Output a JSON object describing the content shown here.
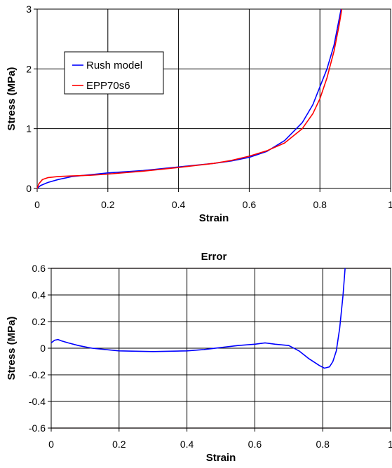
{
  "chart_data": [
    {
      "type": "line",
      "title": "",
      "xlabel": "Strain",
      "ylabel": "Stress (MPa)",
      "xlim": [
        0,
        1
      ],
      "ylim": [
        0,
        3
      ],
      "x_ticks": [
        "0",
        "0.2",
        "0.4",
        "0.6",
        "0.8",
        "1"
      ],
      "y_ticks": [
        "0",
        "1",
        "2",
        "3"
      ],
      "grid": true,
      "legend_position": "upper-left",
      "series": [
        {
          "name": "Rush model",
          "color": "#0000ff",
          "points": [
            [
              0,
              0
            ],
            [
              0.01,
              0.05
            ],
            [
              0.03,
              0.1
            ],
            [
              0.06,
              0.15
            ],
            [
              0.1,
              0.2
            ],
            [
              0.15,
              0.23
            ],
            [
              0.2,
              0.26
            ],
            [
              0.3,
              0.3
            ],
            [
              0.4,
              0.36
            ],
            [
              0.5,
              0.42
            ],
            [
              0.55,
              0.46
            ],
            [
              0.6,
              0.52
            ],
            [
              0.65,
              0.62
            ],
            [
              0.7,
              0.8
            ],
            [
              0.75,
              1.1
            ],
            [
              0.78,
              1.4
            ],
            [
              0.8,
              1.7
            ],
            [
              0.82,
              2.0
            ],
            [
              0.84,
              2.4
            ],
            [
              0.86,
              3.0
            ]
          ]
        },
        {
          "name": "EPP70s6",
          "color": "#ff0000",
          "points": [
            [
              0,
              0
            ],
            [
              0.005,
              0.08
            ],
            [
              0.015,
              0.15
            ],
            [
              0.03,
              0.18
            ],
            [
              0.06,
              0.2
            ],
            [
              0.1,
              0.21
            ],
            [
              0.15,
              0.22
            ],
            [
              0.2,
              0.24
            ],
            [
              0.3,
              0.29
            ],
            [
              0.4,
              0.35
            ],
            [
              0.5,
              0.42
            ],
            [
              0.55,
              0.47
            ],
            [
              0.6,
              0.54
            ],
            [
              0.65,
              0.63
            ],
            [
              0.7,
              0.76
            ],
            [
              0.75,
              1.0
            ],
            [
              0.78,
              1.25
            ],
            [
              0.8,
              1.5
            ],
            [
              0.82,
              1.85
            ],
            [
              0.84,
              2.3
            ],
            [
              0.855,
              2.75
            ],
            [
              0.862,
              3.0
            ]
          ]
        }
      ]
    },
    {
      "type": "line",
      "title": "Error",
      "xlabel": "Strain",
      "ylabel": "Stress (MPa)",
      "xlim": [
        0,
        1
      ],
      "ylim": [
        -0.6,
        0.6
      ],
      "x_ticks": [
        "0",
        "0.2",
        "0.4",
        "0.6",
        "0.8",
        "1"
      ],
      "y_ticks": [
        "-0.6",
        "-0.4",
        "-0.2",
        "0",
        "0.2",
        "0.4",
        "0.6"
      ],
      "grid": true,
      "series": [
        {
          "color": "#0000ff",
          "points": [
            [
              0,
              0.04
            ],
            [
              0.01,
              0.06
            ],
            [
              0.02,
              0.065
            ],
            [
              0.03,
              0.055
            ],
            [
              0.05,
              0.04
            ],
            [
              0.08,
              0.02
            ],
            [
              0.12,
              0.0
            ],
            [
              0.16,
              -0.01
            ],
            [
              0.2,
              -0.02
            ],
            [
              0.3,
              -0.025
            ],
            [
              0.4,
              -0.02
            ],
            [
              0.45,
              -0.01
            ],
            [
              0.5,
              0.005
            ],
            [
              0.55,
              0.02
            ],
            [
              0.6,
              0.03
            ],
            [
              0.63,
              0.04
            ],
            [
              0.66,
              0.03
            ],
            [
              0.7,
              0.02
            ],
            [
              0.73,
              -0.02
            ],
            [
              0.76,
              -0.08
            ],
            [
              0.79,
              -0.13
            ],
            [
              0.805,
              -0.15
            ],
            [
              0.82,
              -0.14
            ],
            [
              0.83,
              -0.1
            ],
            [
              0.84,
              -0.02
            ],
            [
              0.85,
              0.15
            ],
            [
              0.86,
              0.4
            ],
            [
              0.866,
              0.6
            ]
          ]
        }
      ]
    }
  ]
}
